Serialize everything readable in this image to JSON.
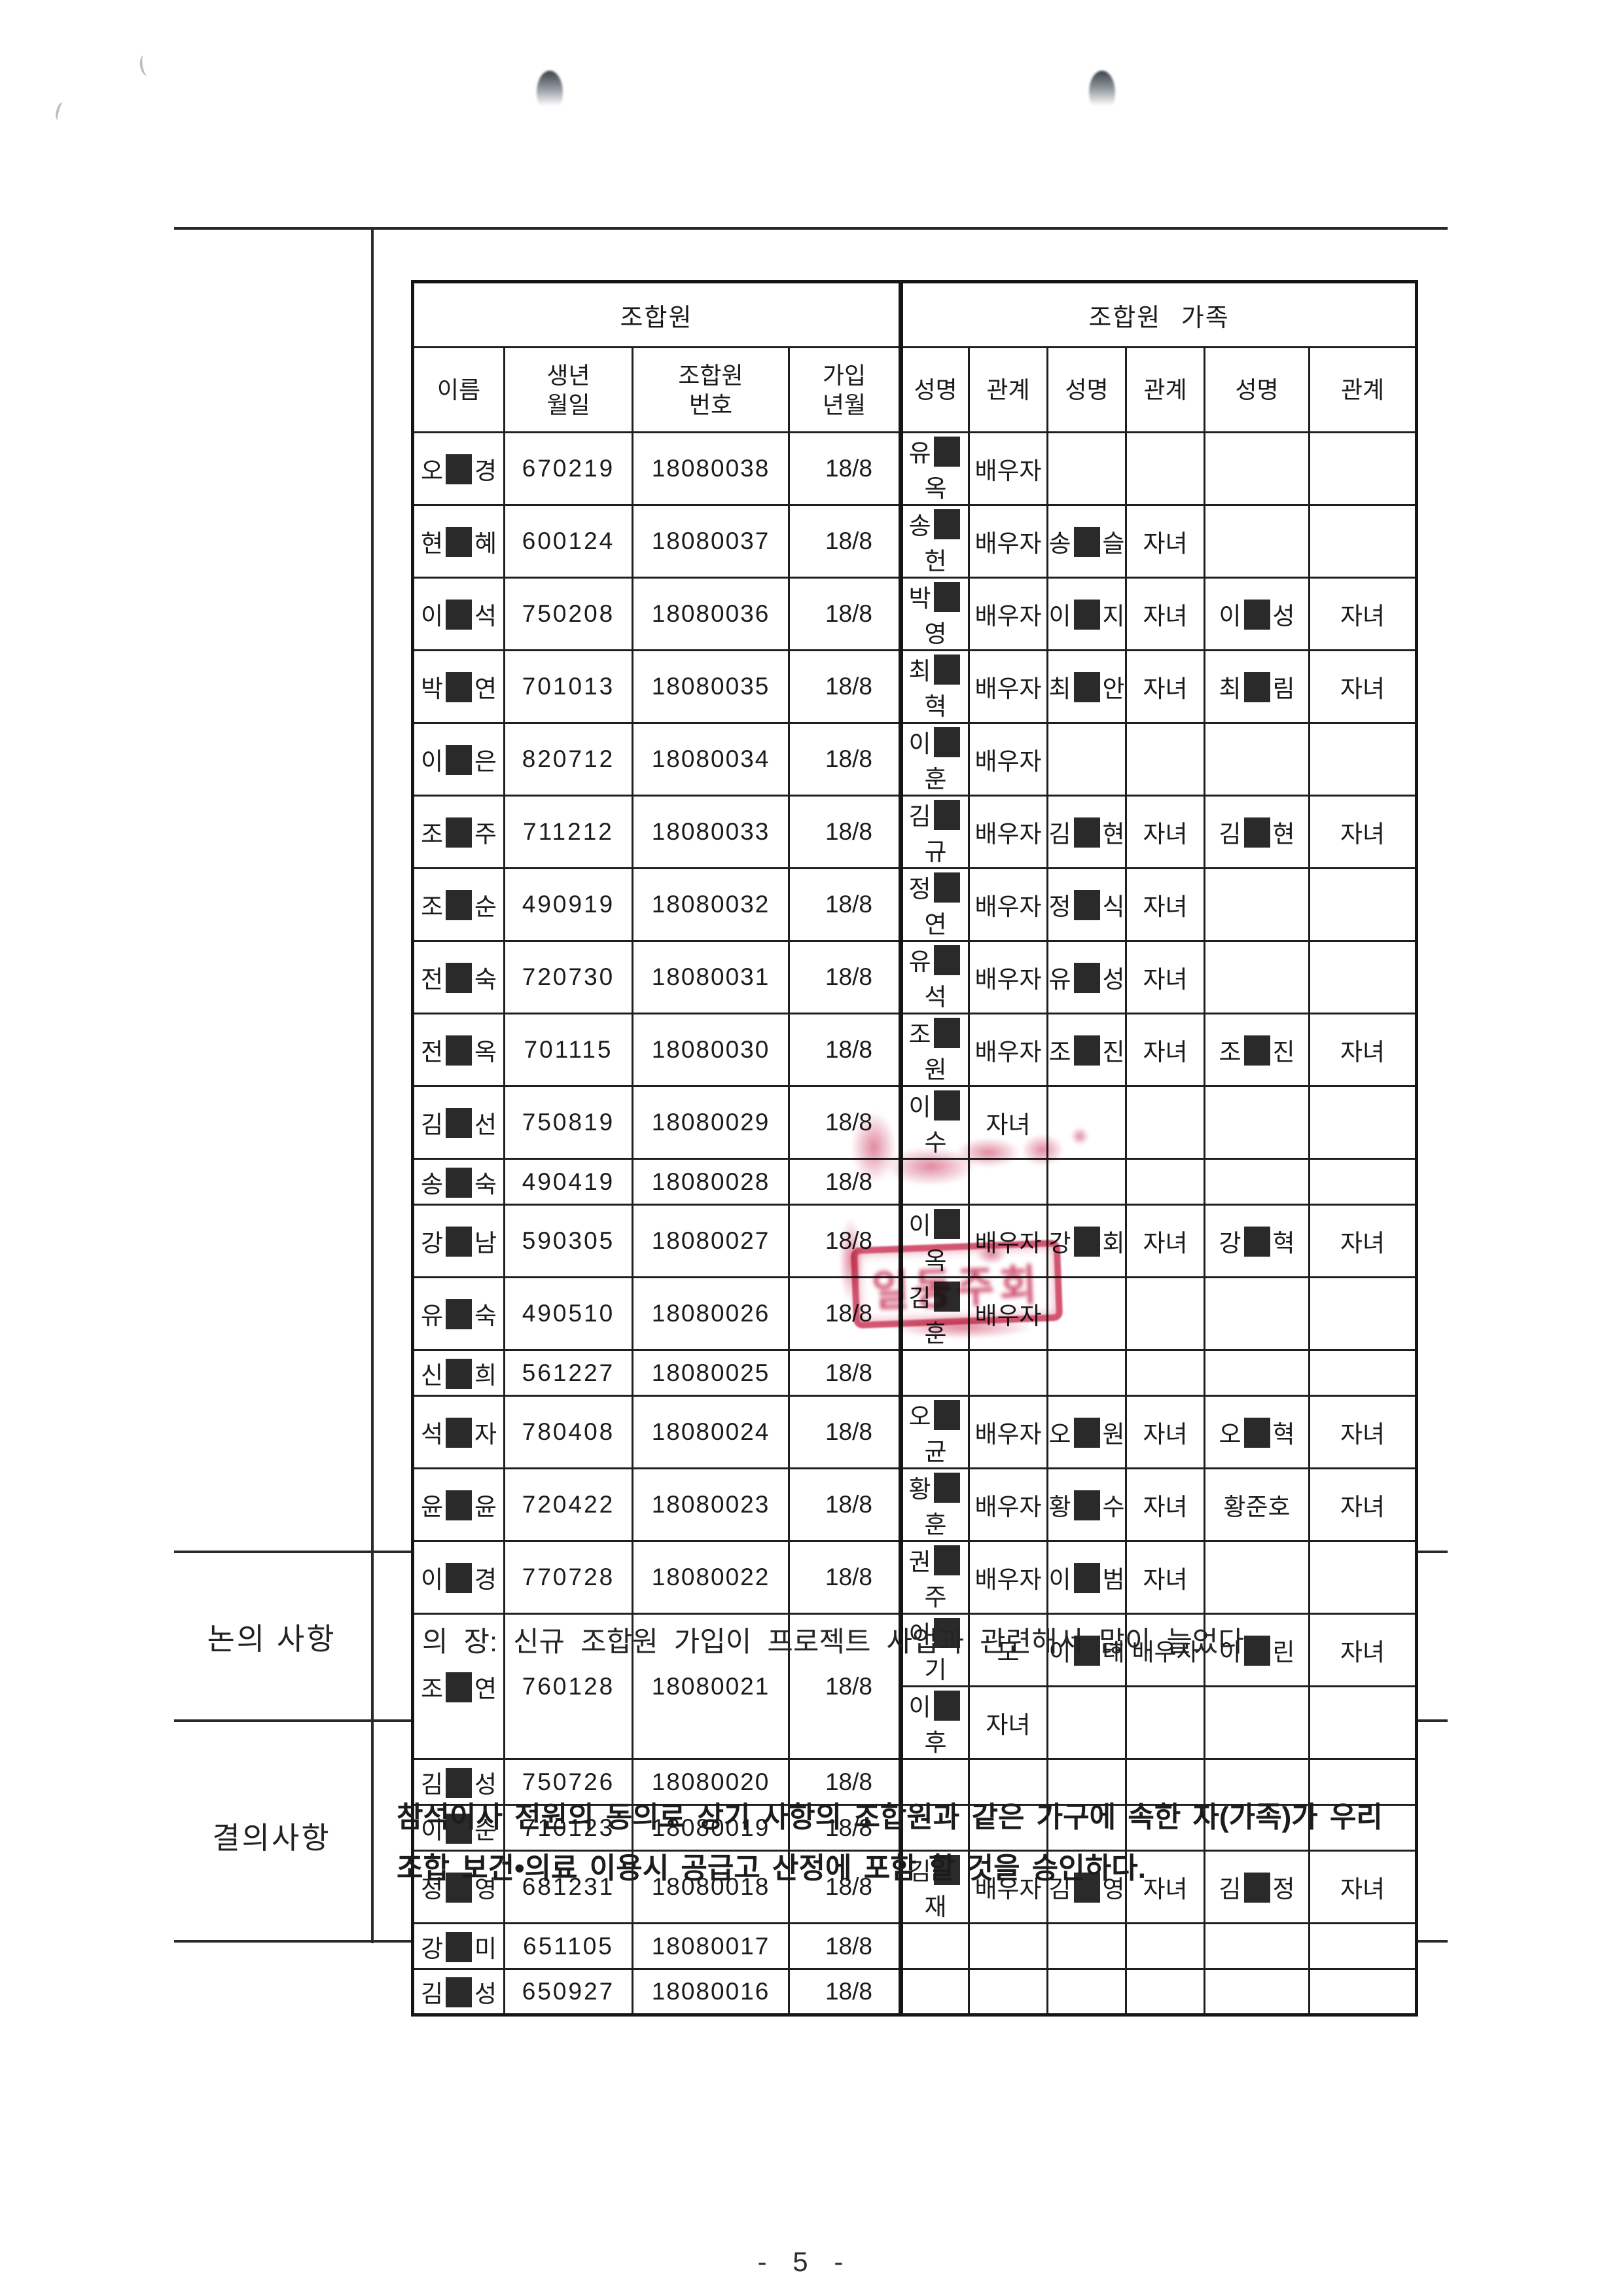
{
  "page": {
    "number": "- 5 -"
  },
  "colors": {
    "ink": "#1e1e1e",
    "line": "#2a2a2a",
    "stamp_red": "#c92f53"
  },
  "table": {
    "group_member": "조합원",
    "group_family": "조합원 가족",
    "col_headers": [
      "이름",
      "생년\n월일",
      "조합원\n번호",
      "가입\n년월",
      "성명",
      "관계",
      "성명",
      "관계",
      "성명",
      "관계"
    ],
    "rows": [
      {
        "name": "오■경",
        "birth": "670219",
        "no": "18080038",
        "join": "18/8",
        "family": [
          {
            "n": "유■옥",
            "r": "배우자"
          }
        ]
      },
      {
        "name": "현■혜",
        "birth": "600124",
        "no": "18080037",
        "join": "18/8",
        "family": [
          {
            "n": "송■헌",
            "r": "배우자"
          },
          {
            "n": "송■슬",
            "r": "자녀"
          }
        ]
      },
      {
        "name": "이■석",
        "birth": "750208",
        "no": "18080036",
        "join": "18/8",
        "family": [
          {
            "n": "박■영",
            "r": "배우자"
          },
          {
            "n": "이■지",
            "r": "자녀"
          },
          {
            "n": "이■성",
            "r": "자녀"
          }
        ]
      },
      {
        "name": "박■연",
        "birth": "701013",
        "no": "18080035",
        "join": "18/8",
        "family": [
          {
            "n": "최■혁",
            "r": "배우자"
          },
          {
            "n": "최■안",
            "r": "자녀"
          },
          {
            "n": "최■림",
            "r": "자녀"
          }
        ]
      },
      {
        "name": "이■은",
        "birth": "820712",
        "no": "18080034",
        "join": "18/8",
        "family": [
          {
            "n": "이■훈",
            "r": "배우자"
          }
        ]
      },
      {
        "name": "조■주",
        "birth": "711212",
        "no": "18080033",
        "join": "18/8",
        "family": [
          {
            "n": "김■규",
            "r": "배우자"
          },
          {
            "n": "김■현",
            "r": "자녀"
          },
          {
            "n": "김■현",
            "r": "자녀"
          }
        ]
      },
      {
        "name": "조■순",
        "birth": "490919",
        "no": "18080032",
        "join": "18/8",
        "family": [
          {
            "n": "정■연",
            "r": "배우자"
          },
          {
            "n": "정■식",
            "r": "자녀"
          }
        ]
      },
      {
        "name": "전■숙",
        "birth": "720730",
        "no": "18080031",
        "join": "18/8",
        "family": [
          {
            "n": "유■석",
            "r": "배우자"
          },
          {
            "n": "유■성",
            "r": "자녀"
          }
        ]
      },
      {
        "name": "전■옥",
        "birth": "701115",
        "no": "18080030",
        "join": "18/8",
        "family": [
          {
            "n": "조■원",
            "r": "배우자"
          },
          {
            "n": "조■진",
            "r": "자녀"
          },
          {
            "n": "조■진",
            "r": "자녀"
          }
        ]
      },
      {
        "name": "김■선",
        "birth": "750819",
        "no": "18080029",
        "join": "18/8",
        "family": [
          {
            "n": "이■수",
            "r": "자녀"
          }
        ]
      },
      {
        "name": "송■숙",
        "birth": "490419",
        "no": "18080028",
        "join": "18/8",
        "family": []
      },
      {
        "name": "강■남",
        "birth": "590305",
        "no": "18080027",
        "join": "18/8",
        "family": [
          {
            "n": "이■옥",
            "r": "배우자"
          },
          {
            "n": "강■회",
            "r": "자녀"
          },
          {
            "n": "강■혁",
            "r": "자녀"
          }
        ]
      },
      {
        "name": "유■숙",
        "birth": "490510",
        "no": "18080026",
        "join": "18/8",
        "family": [
          {
            "n": "김■훈",
            "r": "배우자"
          }
        ]
      },
      {
        "name": "신■희",
        "birth": "561227",
        "no": "18080025",
        "join": "18/8",
        "family": []
      },
      {
        "name": "석■자",
        "birth": "780408",
        "no": "18080024",
        "join": "18/8",
        "family": [
          {
            "n": "오■균",
            "r": "배우자"
          },
          {
            "n": "오■원",
            "r": "자녀"
          },
          {
            "n": "오■혁",
            "r": "자녀"
          }
        ]
      },
      {
        "name": "윤■윤",
        "birth": "720422",
        "no": "18080023",
        "join": "18/8",
        "family": [
          {
            "n": "황■훈",
            "r": "배우자"
          },
          {
            "n": "황■수",
            "r": "자녀"
          },
          {
            "n": "황준호",
            "r": "자녀"
          }
        ]
      },
      {
        "name": "이■경",
        "birth": "770728",
        "no": "18080022",
        "join": "18/8",
        "family": [
          {
            "n": "권■주",
            "r": "배우자"
          },
          {
            "n": "이■범",
            "r": "자녀"
          }
        ]
      },
      {
        "name": "조■연",
        "birth": "760128",
        "no": "18080021",
        "join": "18/8",
        "family": [
          {
            "n": "이■기",
            "r": "모"
          },
          {
            "n": "이■태",
            "r": "배우자"
          },
          {
            "n": "이■린",
            "r": "자녀"
          }
        ],
        "family2": [
          {
            "n": "이■후",
            "r": "자녀"
          }
        ]
      },
      {
        "name": "김■성",
        "birth": "750726",
        "no": "18080020",
        "join": "18/8",
        "family": []
      },
      {
        "name": "이■순",
        "birth": "710123",
        "no": "18080019",
        "join": "18/8",
        "family": []
      },
      {
        "name": "정■영",
        "birth": "681231",
        "no": "18080018",
        "join": "18/8",
        "family": [
          {
            "n": "김■재",
            "r": "배우자"
          },
          {
            "n": "김■영",
            "r": "자녀"
          },
          {
            "n": "김■정",
            "r": "자녀"
          }
        ]
      },
      {
        "name": "강■미",
        "birth": "651105",
        "no": "18080017",
        "join": "18/8",
        "family": []
      },
      {
        "name": "김■성",
        "birth": "650927",
        "no": "18080016",
        "join": "18/8",
        "family": []
      }
    ]
  },
  "stamp": {
    "glyphs": "일동주회"
  },
  "discussion": {
    "label": "논의 사항",
    "content": "의 장: 신규 조합원 가입이 프로젝트 사업과 관련해서 많이 늘었다"
  },
  "resolution": {
    "label": "결의사항",
    "line1": "참석이사 전원의 동의로 상기 사항의 조합원과 같은 가구에 속한 자(가족)가 우리",
    "line2": "조합 보건•의료 이용시 공급고 산정에 포함 할 것을 승인하다."
  }
}
